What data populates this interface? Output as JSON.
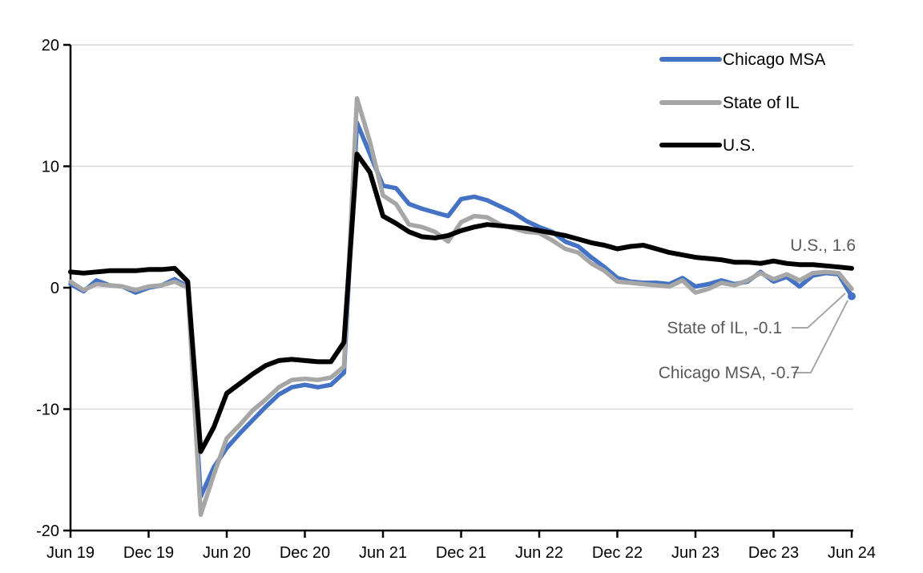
{
  "chart_data": {
    "type": "line",
    "title": "",
    "x_tick_labels": [
      "Jun 19",
      "Dec 19",
      "Jun 20",
      "Dec 20",
      "Jun 21",
      "Dec 21",
      "Jun 22",
      "Dec 22",
      "Jun 23",
      "Dec 23",
      "Jun 24"
    ],
    "x_tick_month_interval": 6,
    "months": [
      "Jun 19",
      "Jul 19",
      "Aug 19",
      "Sep 19",
      "Oct 19",
      "Nov 19",
      "Dec 19",
      "Jan 20",
      "Feb 20",
      "Mar 20",
      "Apr 20",
      "May 20",
      "Jun 20",
      "Jul 20",
      "Aug 20",
      "Sep 20",
      "Oct 20",
      "Nov 20",
      "Dec 20",
      "Jan 21",
      "Feb 21",
      "Mar 21",
      "Apr 21",
      "May 21",
      "Jun 21",
      "Jul 21",
      "Aug 21",
      "Sep 21",
      "Oct 21",
      "Nov 21",
      "Dec 21",
      "Jan 22",
      "Feb 22",
      "Mar 22",
      "Apr 22",
      "May 22",
      "Jun 22",
      "Jul 22",
      "Aug 22",
      "Sep 22",
      "Oct 22",
      "Nov 22",
      "Dec 22",
      "Jan 23",
      "Feb 23",
      "Mar 23",
      "Apr 23",
      "May 23",
      "Jun 23",
      "Jul 23",
      "Aug 23",
      "Sep 23",
      "Oct 23",
      "Nov 23",
      "Dec 23",
      "Jan 24",
      "Feb 24",
      "Mar 24",
      "Apr 24",
      "May 24",
      "Jun 24"
    ],
    "ylim": [
      -20,
      20
    ],
    "y_ticks": [
      20,
      10,
      0,
      -10,
      -20
    ],
    "y_gridlines": [
      20,
      10,
      0,
      -10
    ],
    "grid_on": true,
    "grid_color": "#D9D9D9",
    "axis_color": "#000000",
    "annotation_text_color": "#595959",
    "leader_line_color": "#A6A6A6",
    "legend_position": "top-right",
    "series": [
      {
        "name": "Chicago MSA",
        "color": "#4472C4",
        "end_value": -0.7,
        "values": [
          0.3,
          -0.3,
          0.6,
          0.2,
          0.1,
          -0.4,
          0.0,
          0.2,
          0.7,
          0.1,
          -17.2,
          -14.8,
          -13.2,
          -12.0,
          -10.9,
          -9.8,
          -8.8,
          -8.2,
          -8.0,
          -8.2,
          -8.0,
          -7.0,
          13.6,
          11.0,
          8.4,
          8.2,
          6.9,
          6.5,
          6.2,
          5.9,
          7.3,
          7.5,
          7.2,
          6.7,
          6.2,
          5.5,
          5.0,
          4.6,
          3.8,
          3.4,
          2.5,
          1.7,
          0.8,
          0.5,
          0.4,
          0.4,
          0.3,
          0.8,
          0.1,
          0.3,
          0.6,
          0.3,
          0.5,
          1.3,
          0.5,
          0.9,
          0.1,
          1.0,
          1.2,
          1.1,
          -0.7
        ]
      },
      {
        "name": "State of IL",
        "color": "#A6A6A6",
        "end_value": -0.1,
        "values": [
          0.5,
          -0.2,
          0.3,
          0.2,
          0.1,
          -0.2,
          0.1,
          0.2,
          0.5,
          0.0,
          -18.7,
          -15.4,
          -12.4,
          -11.3,
          -10.1,
          -9.2,
          -8.2,
          -7.6,
          -7.5,
          -7.6,
          -7.4,
          -6.5,
          15.6,
          12.0,
          7.6,
          6.9,
          5.2,
          5.0,
          4.6,
          3.8,
          5.4,
          5.9,
          5.8,
          5.2,
          4.9,
          4.6,
          4.5,
          3.9,
          3.2,
          2.9,
          2.0,
          1.4,
          0.5,
          0.4,
          0.3,
          0.2,
          0.1,
          0.6,
          -0.4,
          -0.1,
          0.4,
          0.2,
          0.6,
          1.2,
          0.7,
          1.1,
          0.6,
          1.2,
          1.3,
          1.2,
          -0.1
        ]
      },
      {
        "name": "U.S.",
        "color": "#000000",
        "end_value": 1.6,
        "values": [
          1.3,
          1.2,
          1.3,
          1.4,
          1.4,
          1.4,
          1.5,
          1.5,
          1.6,
          0.5,
          -13.5,
          -11.5,
          -8.7,
          -7.9,
          -7.1,
          -6.4,
          -6.0,
          -5.9,
          -6.0,
          -6.1,
          -6.1,
          -4.5,
          11.0,
          9.5,
          5.9,
          5.3,
          4.6,
          4.2,
          4.1,
          4.3,
          4.7,
          5.0,
          5.2,
          5.1,
          5.0,
          4.9,
          4.7,
          4.5,
          4.3,
          4.0,
          3.7,
          3.5,
          3.2,
          3.4,
          3.5,
          3.2,
          2.9,
          2.7,
          2.5,
          2.4,
          2.3,
          2.1,
          2.1,
          2.0,
          2.2,
          2.0,
          1.9,
          1.9,
          1.8,
          1.7,
          1.6
        ]
      }
    ],
    "legend_entries": [
      "Chicago MSA",
      "State of IL",
      "U.S."
    ],
    "annotations": [
      {
        "text": "U.S., 1.6"
      },
      {
        "text": "State of IL, -0.1"
      },
      {
        "text": "Chicago MSA, -0.7"
      }
    ],
    "end_marker": {
      "series": "Chicago MSA",
      "shape": "dot"
    }
  }
}
